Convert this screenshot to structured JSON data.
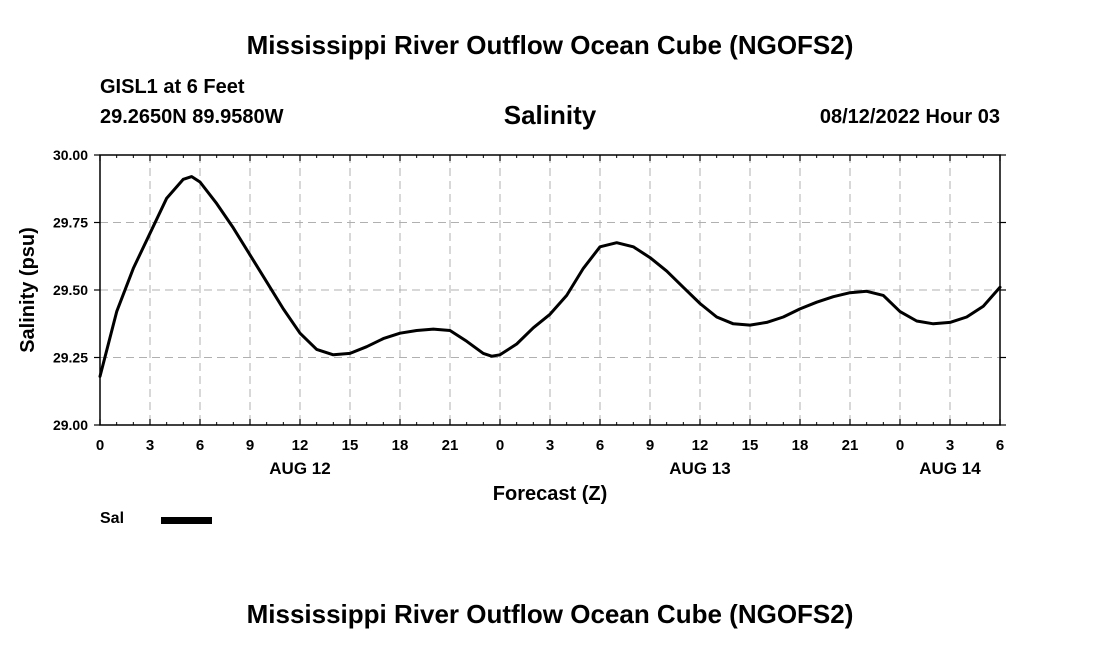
{
  "header": {
    "title": "Mississippi River Outflow Ocean Cube (NGOFS2)",
    "footer_title": "Mississippi River Outflow Ocean Cube (NGOFS2)",
    "station": "GISL1 at 6 Feet",
    "coordinates": "29.2650N  89.9580W",
    "variable": "Salinity",
    "datetime": "08/12/2022 Hour 03"
  },
  "legend": {
    "label": "Sal",
    "color": "#000000"
  },
  "chart_data": {
    "type": "line",
    "title": "Salinity",
    "xlabel": "Forecast (Z)",
    "ylabel": "Salinity (psu)",
    "xlim": [
      0,
      54
    ],
    "ylim": [
      29.0,
      30.0
    ],
    "grid": true,
    "x_ticks": [
      0,
      3,
      6,
      9,
      12,
      15,
      18,
      21,
      24,
      27,
      30,
      33,
      36,
      39,
      42,
      45,
      48,
      51,
      54
    ],
    "x_tick_labels": [
      "0",
      "3",
      "6",
      "9",
      "12",
      "15",
      "18",
      "21",
      "0",
      "3",
      "6",
      "9",
      "12",
      "15",
      "18",
      "21",
      "0",
      "3",
      "6"
    ],
    "y_ticks": [
      29.0,
      29.25,
      29.5,
      29.75,
      30.0
    ],
    "y_tick_labels": [
      "29.00",
      "29.25",
      "29.50",
      "29.75",
      "30.00"
    ],
    "date_labels": [
      {
        "x": 12,
        "label": "AUG 12"
      },
      {
        "x": 36,
        "label": "AUG 13"
      },
      {
        "x": 51,
        "label": "AUG 14"
      }
    ],
    "series": [
      {
        "name": "Sal",
        "x": [
          0,
          1,
          2,
          3,
          4,
          5,
          5.5,
          6,
          7,
          8,
          9,
          10,
          11,
          12,
          13,
          14,
          15,
          16,
          17,
          18,
          19,
          20,
          21,
          22,
          23,
          23.5,
          24,
          25,
          26,
          27,
          28,
          29,
          30,
          31,
          32,
          33,
          34,
          35,
          36,
          37,
          38,
          39,
          40,
          41,
          42,
          43,
          44,
          45,
          46,
          47,
          48,
          49,
          50,
          51,
          52,
          53,
          54
        ],
        "y": [
          29.18,
          29.42,
          29.58,
          29.71,
          29.84,
          29.91,
          29.92,
          29.9,
          29.82,
          29.73,
          29.63,
          29.53,
          29.43,
          29.34,
          29.28,
          29.26,
          29.265,
          29.29,
          29.32,
          29.34,
          29.35,
          29.355,
          29.35,
          29.31,
          29.265,
          29.255,
          29.26,
          29.3,
          29.36,
          29.41,
          29.48,
          29.58,
          29.66,
          29.675,
          29.66,
          29.62,
          29.57,
          29.51,
          29.45,
          29.4,
          29.375,
          29.37,
          29.38,
          29.4,
          29.43,
          29.455,
          29.475,
          29.49,
          29.495,
          29.48,
          29.42,
          29.385,
          29.375,
          29.38,
          29.4,
          29.44,
          29.51
        ]
      }
    ]
  }
}
